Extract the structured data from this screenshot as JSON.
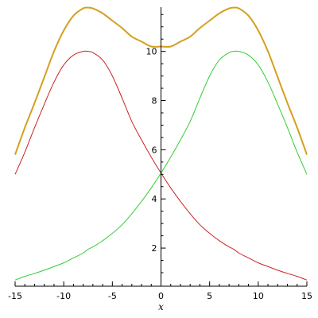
{
  "chart_data": {
    "type": "line",
    "title": "",
    "xlabel": "x",
    "ylabel": "",
    "xlim": [
      -15,
      15
    ],
    "ylim": [
      0.45,
      11.8
    ],
    "grid": false,
    "legend": "none",
    "x_ticks": [
      {
        "value": -15,
        "label": "-15"
      },
      {
        "value": -10,
        "label": "-10"
      },
      {
        "value": -5,
        "label": "-5"
      },
      {
        "value": 0,
        "label": "0"
      },
      {
        "value": 5,
        "label": "5"
      },
      {
        "value": 10,
        "label": "10"
      },
      {
        "value": 15,
        "label": "15"
      }
    ],
    "y_ticks": [
      {
        "value": 2,
        "label": "2"
      },
      {
        "value": 4,
        "label": "4"
      },
      {
        "value": 6,
        "label": "6"
      },
      {
        "value": 8,
        "label": "8"
      },
      {
        "value": 10,
        "label": "10"
      }
    ],
    "x": [
      -15,
      -14,
      -13,
      -12,
      -11,
      -10,
      -9,
      -8,
      -7.5,
      -7,
      -6,
      -5,
      -4,
      -3,
      -2,
      -1,
      0,
      1,
      2,
      3,
      4,
      5,
      6,
      7,
      7.5,
      8,
      9,
      10,
      11,
      12,
      13,
      14,
      15
    ],
    "series": [
      {
        "color": "#cc2222",
        "width": 1,
        "values": [
          5.0,
          5.9,
          6.9,
          7.85,
          8.75,
          9.45,
          9.85,
          10.0,
          10.0,
          9.95,
          9.65,
          9.0,
          8.1,
          7.15,
          6.4,
          5.7,
          5.05,
          4.45,
          3.9,
          3.4,
          2.95,
          2.6,
          2.3,
          2.05,
          1.95,
          1.8,
          1.6,
          1.4,
          1.25,
          1.1,
          0.97,
          0.85,
          0.7
        ]
      },
      {
        "color": "#33cc33",
        "width": 1,
        "values": [
          0.7,
          0.85,
          0.97,
          1.1,
          1.25,
          1.4,
          1.6,
          1.8,
          1.95,
          2.05,
          2.3,
          2.6,
          2.95,
          3.4,
          3.9,
          4.45,
          5.05,
          5.7,
          6.4,
          7.15,
          8.1,
          9.0,
          9.65,
          9.95,
          10.0,
          10.0,
          9.85,
          9.45,
          8.75,
          7.85,
          6.9,
          5.9,
          5.0
        ]
      },
      {
        "color": "#d4a020",
        "width": 2,
        "values": [
          5.8,
          6.9,
          7.9,
          8.95,
          10.0,
          10.85,
          11.45,
          11.75,
          11.78,
          11.75,
          11.55,
          11.25,
          10.95,
          10.6,
          10.4,
          10.2,
          10.2,
          10.2,
          10.4,
          10.6,
          10.95,
          11.25,
          11.55,
          11.75,
          11.78,
          11.75,
          11.45,
          10.85,
          10.0,
          8.95,
          7.9,
          6.9,
          5.8
        ]
      }
    ]
  }
}
